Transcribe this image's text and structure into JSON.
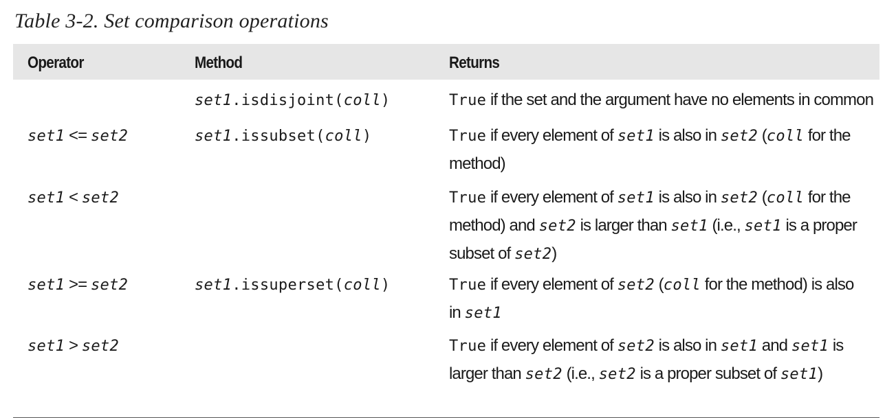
{
  "caption": "Table 3-2. Set comparison operations",
  "headers": {
    "operator": "Operator",
    "method": "Method",
    "returns": "Returns"
  },
  "rows": [
    {
      "operator": {
        "a": "",
        "op": "",
        "b": ""
      },
      "method": {
        "obj": "set1",
        "name": ".isdisjoint(",
        "arg": "coll",
        "close": ")"
      },
      "returns": [
        [
          {
            "t": "True",
            "s": "mono"
          },
          {
            "t": " if the set and the argument have no elements in common",
            "s": "txt"
          }
        ]
      ]
    },
    {
      "operator": {
        "a": "set1",
        "op": " <= ",
        "b": "set2"
      },
      "method": {
        "obj": "set1",
        "name": ".issubset(",
        "arg": "coll",
        "close": ")"
      },
      "returns": [
        [
          {
            "t": "True",
            "s": "mono"
          },
          {
            "t": " if every element of ",
            "s": "txt"
          },
          {
            "t": "set1",
            "s": "mono it"
          },
          {
            "t": " is also in ",
            "s": "txt"
          },
          {
            "t": "set2",
            "s": "mono it"
          },
          {
            "t": " (",
            "s": "txt"
          },
          {
            "t": "coll",
            "s": "mono it"
          },
          {
            "t": " for the",
            "s": "txt"
          }
        ],
        [
          {
            "t": "method)",
            "s": "txt"
          }
        ]
      ]
    },
    {
      "operator": {
        "a": "set1",
        "op": " < ",
        "b": "set2"
      },
      "method": {
        "obj": "",
        "name": "",
        "arg": "",
        "close": ""
      },
      "returns": [
        [
          {
            "t": "True",
            "s": "mono"
          },
          {
            "t": " if every element of ",
            "s": "txt"
          },
          {
            "t": "set1",
            "s": "mono it"
          },
          {
            "t": " is also in ",
            "s": "txt"
          },
          {
            "t": "set2",
            "s": "mono it"
          },
          {
            "t": " (",
            "s": "txt"
          },
          {
            "t": "coll",
            "s": "mono it"
          },
          {
            "t": " for the",
            "s": "txt"
          }
        ],
        [
          {
            "t": "method) and ",
            "s": "txt"
          },
          {
            "t": "set2",
            "s": "mono it"
          },
          {
            "t": " is larger than ",
            "s": "txt"
          },
          {
            "t": "set1",
            "s": "mono it"
          },
          {
            "t": " (i.e., ",
            "s": "txt"
          },
          {
            "t": "set1",
            "s": "mono it"
          },
          {
            "t": " is a proper",
            "s": "txt"
          }
        ],
        [
          {
            "t": "subset of ",
            "s": "txt"
          },
          {
            "t": "set2",
            "s": "mono it"
          },
          {
            "t": ")",
            "s": "txt"
          }
        ]
      ]
    },
    {
      "operator": {
        "a": "set1",
        "op": " >= ",
        "b": "set2"
      },
      "method": {
        "obj": "set1",
        "name": ".issuperset(",
        "arg": "coll",
        "close": ")"
      },
      "returns": [
        [
          {
            "t": "True",
            "s": "mono"
          },
          {
            "t": " if every element of ",
            "s": "txt"
          },
          {
            "t": "set2",
            "s": "mono it"
          },
          {
            "t": " (",
            "s": "txt"
          },
          {
            "t": "coll",
            "s": "mono it"
          },
          {
            "t": " for the method) is also",
            "s": "txt"
          }
        ],
        [
          {
            "t": "in ",
            "s": "txt"
          },
          {
            "t": "set1",
            "s": "mono it"
          }
        ]
      ]
    },
    {
      "operator": {
        "a": "set1",
        "op": " > ",
        "b": "set2"
      },
      "method": {
        "obj": "",
        "name": "",
        "arg": "",
        "close": ""
      },
      "returns": [
        [
          {
            "t": "True",
            "s": "mono"
          },
          {
            "t": " if every element of ",
            "s": "txt"
          },
          {
            "t": "set2",
            "s": "mono it"
          },
          {
            "t": " is also in ",
            "s": "txt"
          },
          {
            "t": "set1",
            "s": "mono it"
          },
          {
            "t": " and ",
            "s": "txt"
          },
          {
            "t": "set1",
            "s": "mono it"
          },
          {
            "t": " is",
            "s": "txt"
          }
        ],
        [
          {
            "t": "larger than ",
            "s": "txt"
          },
          {
            "t": "set2",
            "s": "mono it"
          },
          {
            "t": " (i.e., ",
            "s": "txt"
          },
          {
            "t": "set2",
            "s": "mono it"
          },
          {
            "t": " is a proper subset of ",
            "s": "txt"
          },
          {
            "t": "set1",
            "s": "mono it"
          },
          {
            "t": ")",
            "s": "txt"
          }
        ]
      ]
    }
  ]
}
